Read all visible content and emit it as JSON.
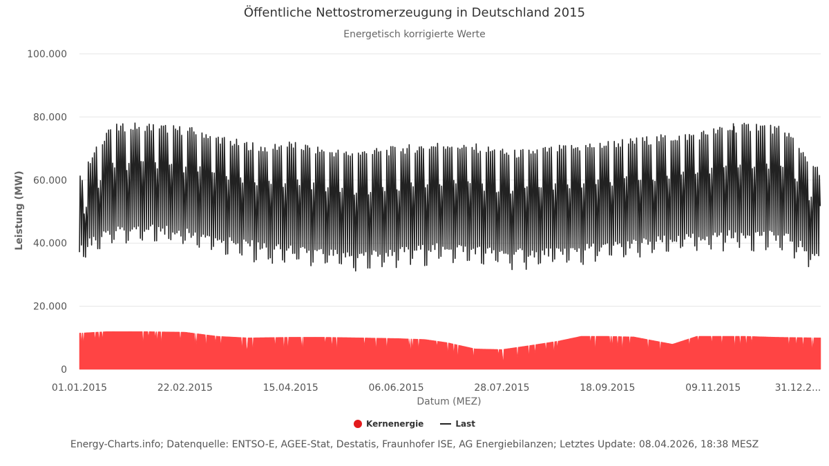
{
  "chart_data": {
    "type": "area",
    "title": "Öffentliche Nettostromerzeugung in Deutschland 2015",
    "subtitle": "Energetisch korrigierte Werte",
    "xlabel": "Datum (MEZ)",
    "ylabel": "Leistung (MW)",
    "ylim": [
      0,
      100000
    ],
    "xlim": [
      "2015-01-01",
      "2016-01-01"
    ],
    "y_ticks": [
      "0",
      "20.000",
      "40.000",
      "60.000",
      "80.000",
      "100.000"
    ],
    "x_ticks": [
      "01.01.2015",
      "22.02.2015",
      "15.04.2015",
      "06.06.2015",
      "28.07.2015",
      "18.09.2015",
      "09.11.2015",
      "31.12.2..."
    ],
    "grid": "horizontal",
    "legend_position": "bottom-center",
    "series": [
      {
        "name": "Kernenergie",
        "type": "area",
        "color": "#ff4444",
        "x": [
          "2015-01-01",
          "2015-01-15",
          "2015-02-01",
          "2015-02-22",
          "2015-03-10",
          "2015-03-25",
          "2015-04-15",
          "2015-05-01",
          "2015-05-20",
          "2015-06-06",
          "2015-06-20",
          "2015-07-01",
          "2015-07-15",
          "2015-07-28",
          "2015-08-10",
          "2015-08-25",
          "2015-09-05",
          "2015-09-18",
          "2015-10-01",
          "2015-10-10",
          "2015-10-20",
          "2015-11-01",
          "2015-11-09",
          "2015-11-25",
          "2015-12-10",
          "2015-12-31"
        ],
        "values": [
          11500,
          12000,
          12000,
          11800,
          10500,
          10000,
          10200,
          10200,
          10000,
          9800,
          9500,
          8500,
          6500,
          6300,
          7500,
          9000,
          10500,
          10500,
          10300,
          9200,
          8000,
          10500,
          10500,
          10500,
          10200,
          10000
        ]
      },
      {
        "name": "Last",
        "type": "line",
        "color": "#222222",
        "x": [
          "2015-01-01",
          "2015-01-15",
          "2015-02-01",
          "2015-02-15",
          "2015-03-01",
          "2015-03-15",
          "2015-04-01",
          "2015-04-15",
          "2015-05-01",
          "2015-05-15",
          "2015-06-01",
          "2015-06-15",
          "2015-07-01",
          "2015-07-15",
          "2015-08-01",
          "2015-08-15",
          "2015-09-01",
          "2015-09-15",
          "2015-10-01",
          "2015-10-15",
          "2015-11-01",
          "2015-11-15",
          "2015-12-01",
          "2015-12-15",
          "2015-12-31"
        ],
        "daily_max": [
          60000,
          76000,
          77000,
          76000,
          75000,
          72000,
          70000,
          71000,
          69000,
          68000,
          69000,
          70000,
          71000,
          70000,
          68000,
          69000,
          70000,
          71000,
          72000,
          73000,
          74000,
          76000,
          77000,
          75000,
          62000
        ],
        "daily_min": [
          38000,
          44000,
          45000,
          44000,
          43000,
          41000,
          39000,
          38000,
          37000,
          36000,
          37000,
          38000,
          39000,
          38000,
          37000,
          37000,
          38000,
          39000,
          40000,
          41000,
          42000,
          43000,
          43000,
          42000,
          36000
        ],
        "annotations": {
          "min_value": 33500,
          "min_date": "2015-04-06",
          "max_value": 78000,
          "max_date": "2015-11-19"
        }
      }
    ]
  },
  "footer": "Energy-Charts.info; Datenquelle: ENTSO-E, AGEE-Stat, Destatis, Fraunhofer ISE, AG Energiebilanzen; Letztes Update: 08.04.2026, 18:38 MESZ"
}
